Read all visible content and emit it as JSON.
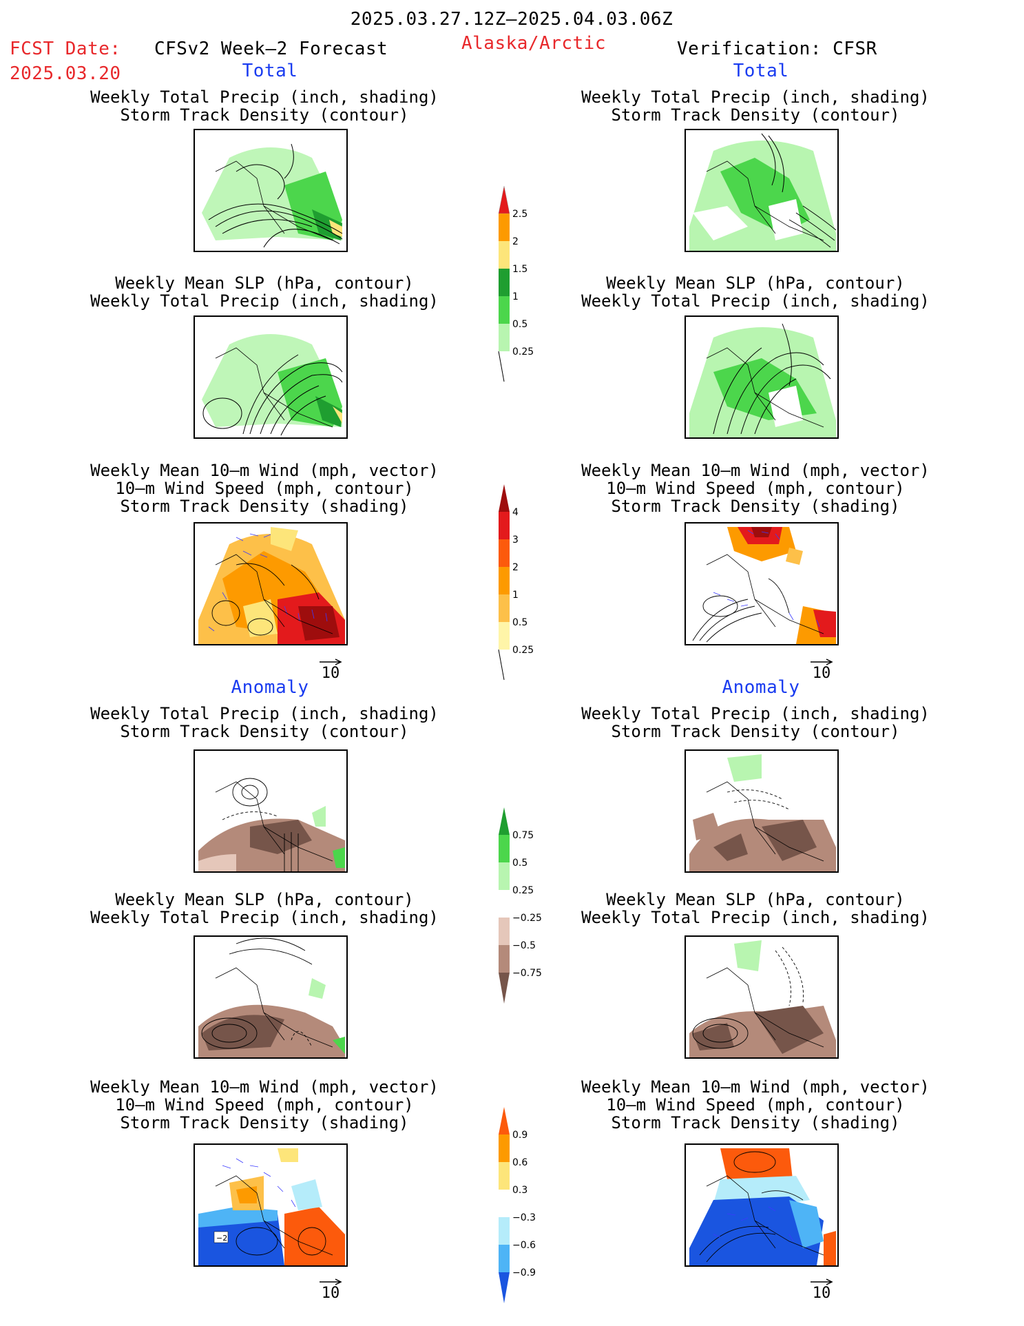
{
  "header": {
    "date_range": "2025.03.27.12Z–2025.04.03.06Z",
    "fcst_label": "FCST Date:",
    "fcst_date": "2025.03.20",
    "forecast_title": "CFSv2 Week–2 Forecast",
    "region": "Alaska/Arctic",
    "verification": "Verification: CFSR"
  },
  "sections": {
    "total": "Total",
    "anomaly": "Anomaly"
  },
  "panel_titles": {
    "precip_storm": "Weekly Total Precip (inch, shading)\nStorm Track Density (contour)",
    "slp_precip": "Weekly Mean SLP (hPa, contour)\nWeekly Total Precip (inch, shading)",
    "wind_storm": "Weekly Mean 10–m Wind (mph, vector)\n10–m Wind Speed (mph, contour)\nStorm Track Density (shading)"
  },
  "vector_ref": "10",
  "map_annotation": "−2",
  "colorbars": {
    "precip_total": {
      "labels": [
        "2.5",
        "2",
        "1.5",
        "1",
        "0.5",
        "0.25"
      ],
      "colors": [
        "#e31a1c",
        "#fd9a00",
        "#fde57a",
        "#1f9e30",
        "#4cd64c",
        "#b8f5b0"
      ]
    },
    "storm_total": {
      "labels": [
        "4",
        "3",
        "2",
        "1",
        "0.5",
        "0.25"
      ],
      "colors": [
        "#9e0d0d",
        "#e31a1c",
        "#fc5a0c",
        "#fd9a00",
        "#fdc049",
        "#fff5a8"
      ]
    },
    "precip_anom": {
      "labels": [
        "0.75",
        "0.5",
        "0.25",
        "−0.25",
        "−0.5",
        "−0.75"
      ],
      "colors_top": [
        "#1f9e30",
        "#4cd64c",
        "#b8f5b0"
      ],
      "colors_bottom": [
        "#e5c7ba",
        "#b48a7a",
        "#76554a"
      ]
    },
    "storm_anom": {
      "labels": [
        "0.9",
        "0.6",
        "0.3",
        "−0.3",
        "−0.6",
        "−0.9"
      ],
      "colors_top": [
        "#fc5a0c",
        "#fd9a00",
        "#fde57a"
      ],
      "colors_bottom": [
        "#b5ecfa",
        "#4eb4f6",
        "#1a55e0"
      ]
    }
  },
  "colors": {
    "header_red": "#e8282b",
    "section_blue": "#1a3cf0"
  }
}
